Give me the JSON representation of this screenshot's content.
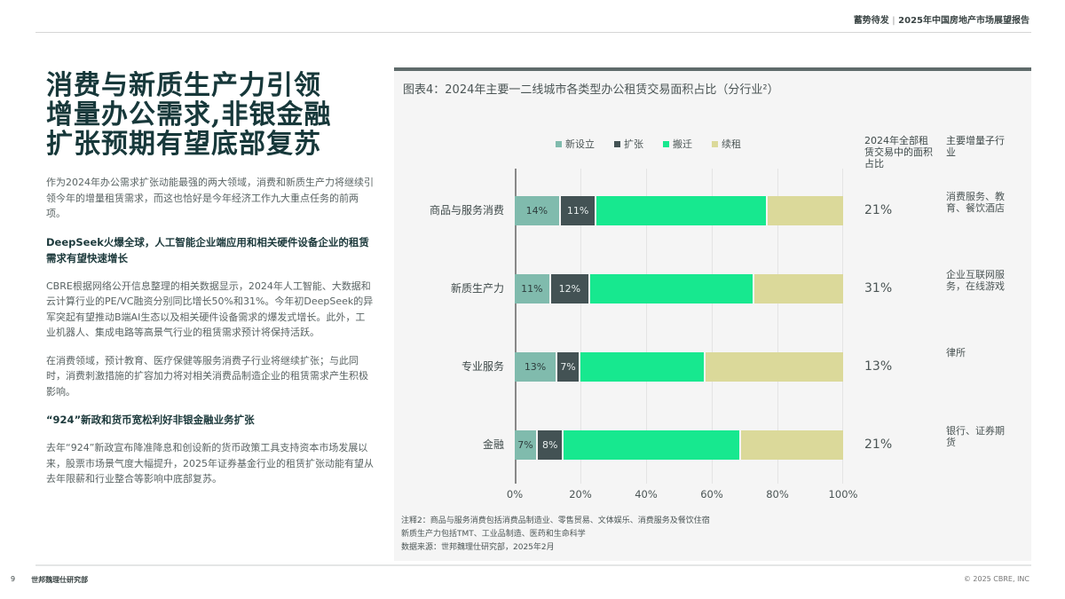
{
  "header": {
    "series_name": "蓄势待发",
    "separator": "|",
    "report_title": "2025年中国房地产市场展望报告"
  },
  "left": {
    "headline": [
      "消费与新质生产力引领",
      "增量办公需求,非银金融",
      "扩张预期有望底部复苏"
    ],
    "intro": "作为2024年办公需求扩张动能最强的两大领域，消费和新质生产力将继续引领今年的增量租赁需求，而这也恰好是今年经济工作九大重点任务的前两项。",
    "section1_title": "DeepSeek火爆全球，人工智能企业端应用和相关硬件设备企业的租赁需求有望快速增长",
    "section1_body1": "CBRE根据网络公开信息整理的相关数据显示，2024年人工智能、大数据和云计算行业的PE/VC融资分别同比增长50%和31%。今年初DeepSeek的异军突起有望推动B端AI生态以及相关硬件设备需求的爆发式增长。此外，工业机器人、集成电路等高景气行业的租赁需求预计将保持活跃。",
    "section1_body2": "在消费领域，预计教育、医疗保健等服务消费子行业将继续扩张；与此同时，消费刺激措施的扩容加力将对相关消费品制造企业的租赁需求产生积极影响。",
    "section2_title": "“924”新政和货币宽松利好非银金融业务扩张",
    "section2_body": "去年“924”新政宣布降准降息和创设新的货币政策工具支持资本市场发展以来，股票市场景气度大幅提升，2025年证券基金行业的租赁扩张动能有望从去年限薪和行业整合等影响中底部复苏。"
  },
  "chart": {
    "column_headers": {
      "share": "2024年全部租赁交易中的面积占比",
      "sub_industry": "主要增量子行业"
    },
    "notes": [
      "注释2：商品与服务消费包括消费品制造业、零售贸易、文体娱乐、消费服务及餐饮住宿",
      "新质生产力包括TMT、工业品制造、医药和生命科学",
      "数据来源：世邦魏理仕研究部，2025年2月"
    ]
  },
  "chart_data": {
    "type": "bar",
    "orientation": "horizontal",
    "stacked": "percent",
    "title": "图表4：2024年主要一二线城市各类型办公租赁交易面积占比（分行业²）",
    "categories": [
      "商品与服务消费",
      "新质生产力",
      "专业服务",
      "金融"
    ],
    "series": [
      {
        "name": "新设立",
        "color": "#80bbad",
        "values": [
          14,
          11,
          13,
          7
        ],
        "labels": [
          "14%",
          "11%",
          "13%",
          "7%"
        ]
      },
      {
        "name": "扩张",
        "color": "#435254",
        "values": [
          11,
          12,
          7,
          8
        ],
        "labels": [
          "11%",
          "12%",
          "7%",
          "8%"
        ]
      },
      {
        "name": "搬迁",
        "color": "#17e88f",
        "values": [
          52,
          50,
          38,
          54
        ]
      },
      {
        "name": "续租",
        "color": "#dbd99a",
        "values": [
          23,
          27,
          42,
          31
        ]
      }
    ],
    "x_ticks": [
      "0%",
      "20%",
      "40%",
      "60%",
      "80%",
      "100%"
    ],
    "xlim": [
      0,
      100
    ],
    "grid": true,
    "legend_position": "top",
    "side_table": {
      "share_of_total": [
        "21%",
        "31%",
        "13%",
        "21%"
      ],
      "main_sub_industries": [
        "消费服务、教育、餐饮酒店",
        "企业互联网服务，在线游戏",
        "律所",
        "银行、证券期货"
      ]
    }
  },
  "footer": {
    "page_number": "9",
    "org": "世邦魏理仕研究部",
    "copyright": "© 2025 CBRE, INC"
  }
}
